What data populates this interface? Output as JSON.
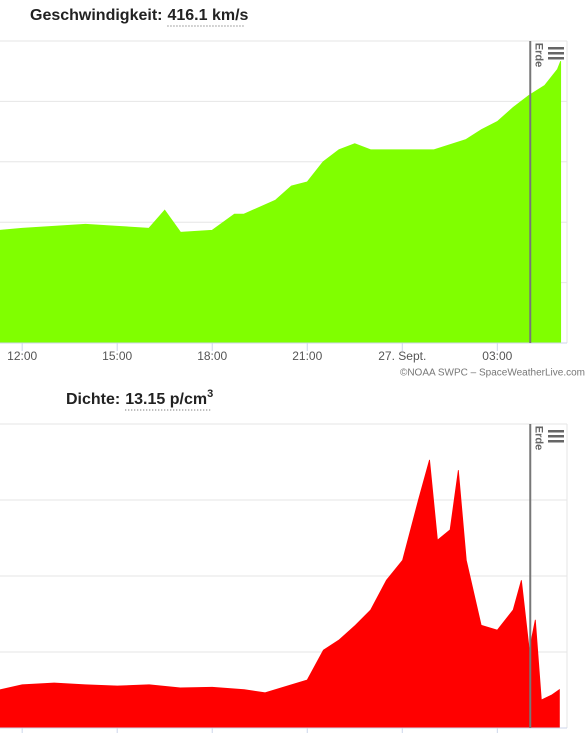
{
  "chart_data": [
    {
      "type": "area",
      "title": "Geschwindigkeit:",
      "value_text": "416.1 km/s",
      "x": [
        11.3,
        12,
        13,
        14,
        15,
        16,
        16.5,
        17,
        18,
        18.7,
        19,
        20,
        20.5,
        21,
        21.5,
        22,
        22.5,
        23,
        24,
        25,
        26,
        26.5,
        27,
        27.5,
        28,
        28.5,
        28.9,
        29.0
      ],
      "series": [
        {
          "color": "#80ff00",
          "values": [
            356,
            357,
            358,
            359,
            358,
            357,
            366,
            355,
            356,
            364,
            364,
            371,
            378,
            380,
            390,
            396,
            399,
            396,
            396,
            396,
            401,
            406,
            410,
            417,
            423,
            428,
            436,
            440
          ]
        }
      ],
      "xlim": [
        11.3,
        29.2
      ],
      "ylim": [
        300,
        450
      ],
      "xticks": [
        {
          "value": 12,
          "label": "12:00"
        },
        {
          "value": 15,
          "label": "15:00"
        },
        {
          "value": 18,
          "label": "18:00"
        },
        {
          "value": 21,
          "label": "21:00"
        },
        {
          "value": 24,
          "label": "27. Sept."
        },
        {
          "value": 27,
          "label": "03:00"
        }
      ],
      "marker": {
        "x": 28.04,
        "label": "Erde"
      },
      "credit": "©NOAA SWPC – SpaceWeatherLive.com"
    },
    {
      "type": "area",
      "title": "Dichte:",
      "value_text": "13.15 p/cm",
      "value_sup": "3",
      "x": [
        11.31,
        12,
        13.01,
        13.99,
        15,
        16.01,
        16.99,
        18,
        19.01,
        19.67,
        20.49,
        21,
        21.51,
        22.01,
        22.52,
        23,
        23.5,
        24.01,
        24.51,
        24.86,
        25.11,
        25.51,
        25.77,
        26.02,
        26.49,
        27,
        27.5,
        27.76,
        28.01,
        28.2,
        28.39,
        28.71,
        28.96
      ],
      "series": [
        {
          "color": "#ff0000",
          "values": [
            6.3,
            7.1,
            7.4,
            7.1,
            6.9,
            7.1,
            6.6,
            6.7,
            6.3,
            5.8,
            7.1,
            7.9,
            12.8,
            14.5,
            16.9,
            19.4,
            24.3,
            27.6,
            37.5,
            44.1,
            30.9,
            32.6,
            42.4,
            27.6,
            16.9,
            16.1,
            19.4,
            24.3,
            12.8,
            17.8,
            4.6,
            5.4,
            6.3
          ]
        }
      ],
      "xlim": [
        11.3,
        29.2
      ],
      "ylim": [
        0,
        50
      ],
      "marker": {
        "x": 28.04,
        "label": "Erde"
      }
    }
  ]
}
